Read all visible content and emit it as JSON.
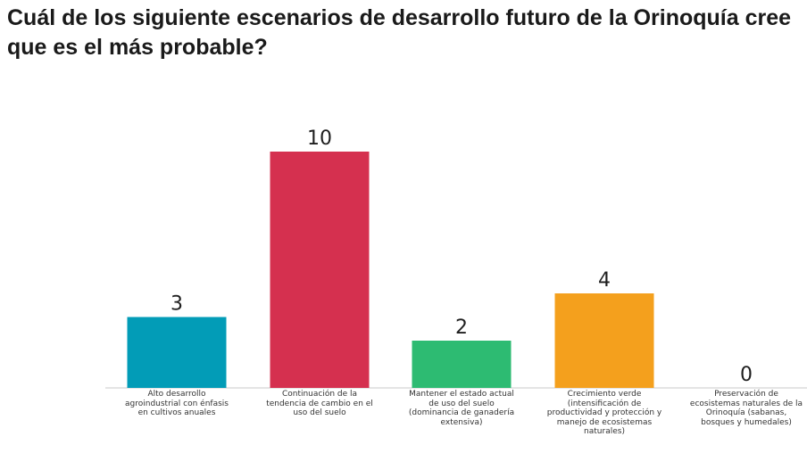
{
  "colors": {
    "axis": "#c8c8c8"
  },
  "chart_data": {
    "type": "bar",
    "title": "Cuál de los siguiente escenarios de desarrollo futuro de la Orinoquía cree que es el más probable?",
    "xlabel": "",
    "ylabel": "",
    "ylim": [
      0,
      10
    ],
    "grid": false,
    "legend": "none",
    "categories": [
      "Alto desarrollo agroindustrial con énfasis en cultivos anuales",
      "Continuación de la tendencia de cambio en el uso del suelo",
      "Mantener el estado actual de uso del suelo (dominancia de ganadería extensiva)",
      "Crecimiento verde (intensificación de productividad y protección y manejo de ecosistemas naturales)",
      "Preservación de ecosistemas naturales de la Orinoquía (sabanas, bosques y humedales)"
    ],
    "values": [
      3,
      10,
      2,
      4,
      0
    ],
    "bar_colors": [
      "#029cb7",
      "#d5304f",
      "#2dbb72",
      "#f4a01d",
      "#9e9e9e"
    ]
  }
}
